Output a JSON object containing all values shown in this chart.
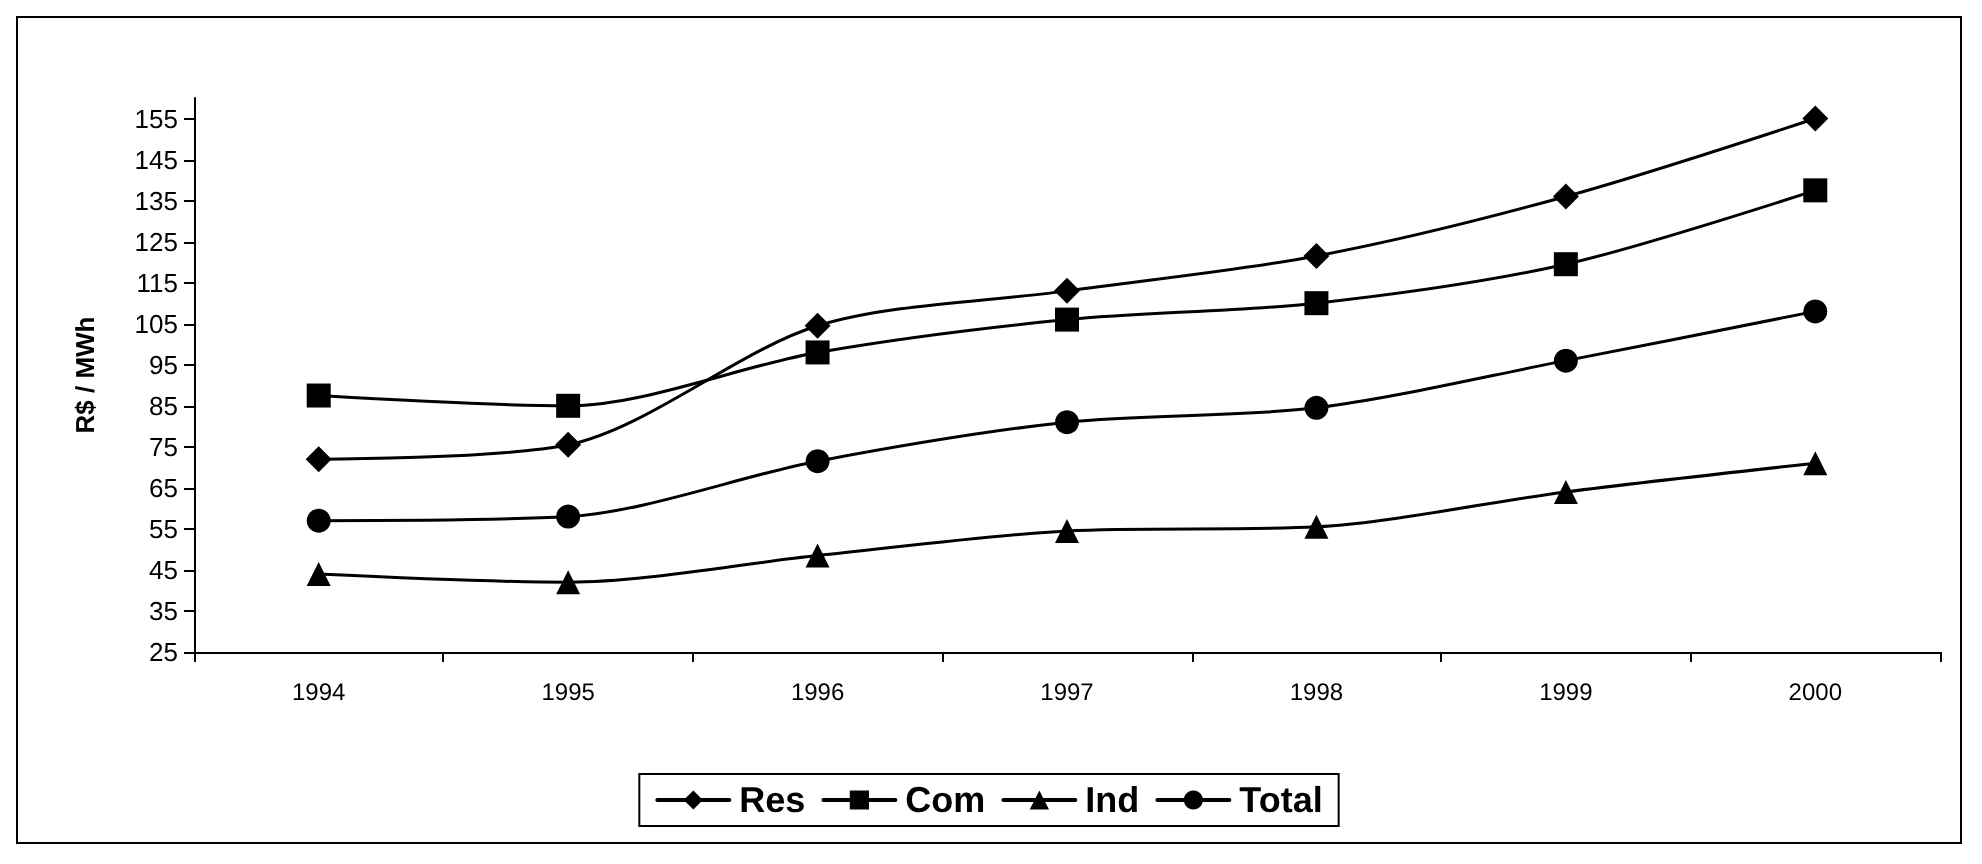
{
  "chart_data": {
    "type": "line",
    "ylabel": "R$ / MWh",
    "categories": [
      "1994",
      "1995",
      "1996",
      "1997",
      "1998",
      "1999",
      "2000"
    ],
    "series": [
      {
        "name": "Res",
        "color": "#000000",
        "marker": "diamond",
        "values": [
          72,
          75.5,
          104.5,
          113,
          121.5,
          136,
          155
        ]
      },
      {
        "name": "Com",
        "color": "#000000",
        "marker": "square",
        "values": [
          87.5,
          85,
          98,
          106,
          110,
          119.5,
          137.5
        ]
      },
      {
        "name": "Ind",
        "color": "#000000",
        "marker": "triangle",
        "values": [
          44,
          42,
          48.5,
          54.5,
          55.5,
          64,
          71
        ]
      },
      {
        "name": "Total",
        "color": "#000000",
        "marker": "circle",
        "values": [
          57,
          58,
          71.5,
          81,
          84.5,
          96,
          108
        ]
      }
    ],
    "ylim": [
      25,
      160
    ],
    "yticks": [
      25,
      35,
      45,
      55,
      65,
      75,
      85,
      95,
      105,
      115,
      125,
      135,
      145,
      155
    ],
    "grid": false,
    "legend": "bottom",
    "line_style": "solid"
  }
}
